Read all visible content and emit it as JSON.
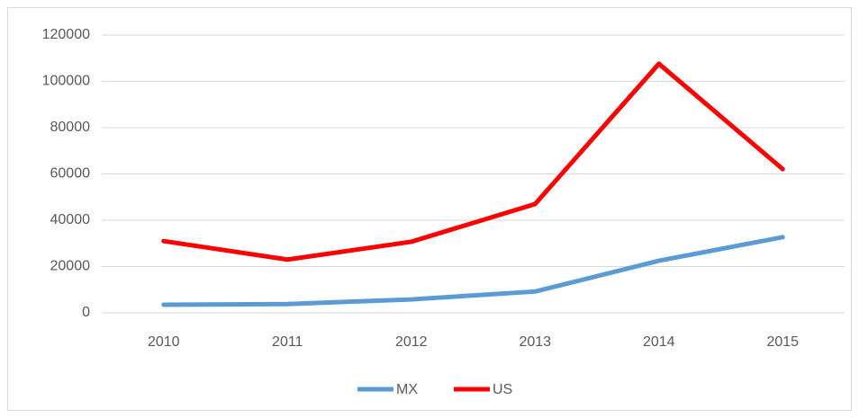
{
  "chart_data": {
    "type": "line",
    "categories": [
      "2010",
      "2011",
      "2012",
      "2013",
      "2014",
      "2015"
    ],
    "series": [
      {
        "name": "MX",
        "color": "#5b9bd5",
        "values": [
          3500,
          3800,
          5800,
          9200,
          22500,
          32700
        ]
      },
      {
        "name": "US",
        "color": "#ff0000",
        "values": [
          31000,
          23000,
          30700,
          47000,
          107600,
          62100
        ]
      }
    ],
    "ylim": [
      0,
      120000
    ],
    "yticks": [
      0,
      20000,
      40000,
      60000,
      80000,
      100000,
      120000
    ],
    "grid": true,
    "legend": "bottom"
  }
}
